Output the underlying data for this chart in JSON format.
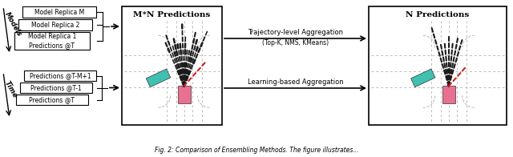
{
  "fig_width": 6.4,
  "fig_height": 1.96,
  "dpi": 100,
  "bg_color": "#ffffff",
  "models_boxes": [
    "Model Replica M",
    "Model Replica 2",
    "Model Replica 1\nPredictions @T"
  ],
  "time_boxes": [
    "Predictions @T-M+1",
    "Predictions @T-1",
    "Predictions @T"
  ],
  "mn_title": "M*N Predictions",
  "n_title": "N Predictions",
  "label_models": "Models",
  "label_time": "Time",
  "agg_top": "Trajectory-level Aggregation",
  "agg_top_sub": "(Top-K, NMS, KMeans)",
  "agg_bottom": "Learning-based Aggregation",
  "teal_color": "#40c0b0",
  "pink_color": "#e87090",
  "box_border": "#333333",
  "box_fill": "#ffffff",
  "trajectory_dark": "#1a1a1a",
  "trajectory_red": "#cc2222",
  "grid_color": "#bbbbbb",
  "caption": "Fig. 2: Comparison of Ensembling Methods. The figure illustrates..."
}
